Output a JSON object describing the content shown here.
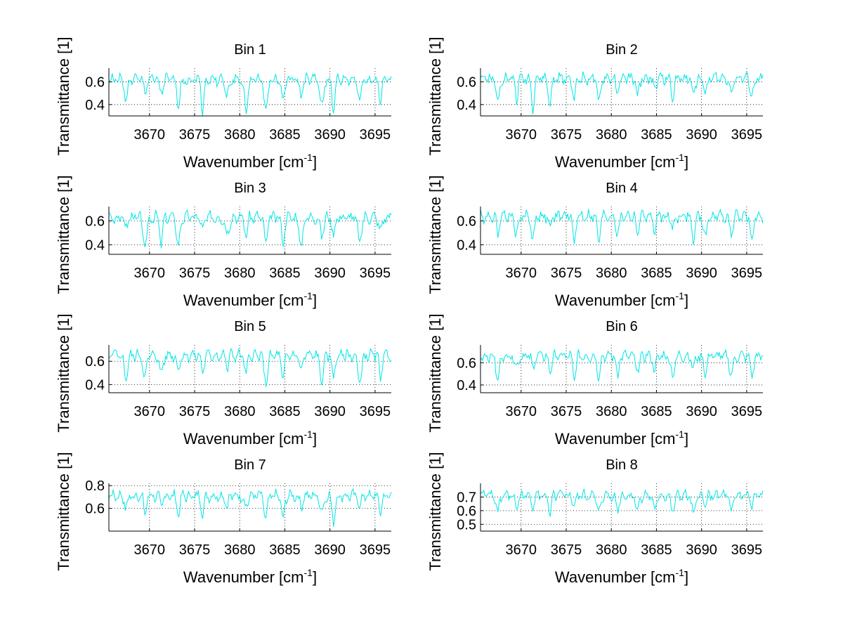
{
  "chart_data": [
    {
      "type": "line",
      "title": "Bin 1",
      "xlabel": "Wavenumber [cm",
      "xlabel_sup": "-1",
      "xlabel_end": "]",
      "ylabel": "Transmittance [1]",
      "xlim": [
        3665.5,
        3696.8
      ],
      "ylim": [
        0.3,
        0.72
      ],
      "xticks": [
        3670,
        3675,
        3680,
        3685,
        3690,
        3695
      ],
      "xtick_labels": [
        "3670",
        "3675",
        "3680",
        "3685",
        "3690",
        "3695"
      ],
      "yticks": [
        0.4,
        0.6
      ],
      "ytick_labels": [
        "0.4",
        "0.6"
      ],
      "grid": true,
      "line_color": "#00e5e5",
      "series": [
        {
          "name": "Bin 1",
          "baseline": 0.62,
          "amplitude": 0.05,
          "dip_scale": 0.3,
          "seed": 1
        }
      ]
    },
    {
      "type": "line",
      "title": "Bin 2",
      "xlabel": "Wavenumber [cm",
      "xlabel_sup": "-1",
      "xlabel_end": "]",
      "ylabel": "Transmittance [1]",
      "xlim": [
        3665.5,
        3696.8
      ],
      "ylim": [
        0.3,
        0.72
      ],
      "xticks": [
        3670,
        3675,
        3680,
        3685,
        3690,
        3695
      ],
      "xtick_labels": [
        "3670",
        "3675",
        "3680",
        "3685",
        "3690",
        "3695"
      ],
      "yticks": [
        0.4,
        0.6
      ],
      "ytick_labels": [
        "0.4",
        "0.6"
      ],
      "grid": true,
      "line_color": "#00e5e5",
      "series": [
        {
          "name": "Bin 2",
          "baseline": 0.63,
          "amplitude": 0.05,
          "dip_scale": 0.28,
          "seed": 2
        }
      ]
    },
    {
      "type": "line",
      "title": "Bin 3",
      "xlabel": "Wavenumber [cm",
      "xlabel_sup": "-1",
      "xlabel_end": "]",
      "ylabel": "Transmittance [1]",
      "xlim": [
        3665.5,
        3696.8
      ],
      "ylim": [
        0.32,
        0.72
      ],
      "xticks": [
        3670,
        3675,
        3680,
        3685,
        3690,
        3695
      ],
      "xtick_labels": [
        "3670",
        "3675",
        "3680",
        "3685",
        "3690",
        "3695"
      ],
      "yticks": [
        0.4,
        0.6
      ],
      "ytick_labels": [
        "0.4",
        "0.6"
      ],
      "grid": true,
      "line_color": "#00e5e5",
      "series": [
        {
          "name": "Bin 3",
          "baseline": 0.63,
          "amplitude": 0.05,
          "dip_scale": 0.27,
          "seed": 3
        }
      ]
    },
    {
      "type": "line",
      "title": "Bin 4",
      "xlabel": "Wavenumber [cm",
      "xlabel_sup": "-1",
      "xlabel_end": "]",
      "ylabel": "Transmittance [1]",
      "xlim": [
        3665.5,
        3696.8
      ],
      "ylim": [
        0.32,
        0.72
      ],
      "xticks": [
        3670,
        3675,
        3680,
        3685,
        3690,
        3695
      ],
      "xtick_labels": [
        "3670",
        "3675",
        "3680",
        "3685",
        "3690",
        "3695"
      ],
      "yticks": [
        0.4,
        0.6
      ],
      "ytick_labels": [
        "0.4",
        "0.6"
      ],
      "grid": true,
      "line_color": "#00e5e5",
      "series": [
        {
          "name": "Bin 4",
          "baseline": 0.64,
          "amplitude": 0.05,
          "dip_scale": 0.26,
          "seed": 4
        }
      ]
    },
    {
      "type": "line",
      "title": "Bin 5",
      "xlabel": "Wavenumber [cm",
      "xlabel_sup": "-1",
      "xlabel_end": "]",
      "ylabel": "Transmittance [1]",
      "xlim": [
        3665.5,
        3696.8
      ],
      "ylim": [
        0.33,
        0.74
      ],
      "xticks": [
        3670,
        3675,
        3680,
        3685,
        3690,
        3695
      ],
      "xtick_labels": [
        "3670",
        "3675",
        "3680",
        "3685",
        "3690",
        "3695"
      ],
      "yticks": [
        0.4,
        0.6
      ],
      "ytick_labels": [
        "0.4",
        "0.6"
      ],
      "grid": true,
      "line_color": "#00e5e5",
      "series": [
        {
          "name": "Bin 5",
          "baseline": 0.65,
          "amplitude": 0.05,
          "dip_scale": 0.24,
          "seed": 5
        }
      ]
    },
    {
      "type": "line",
      "title": "Bin 6",
      "xlabel": "Wavenumber [cm",
      "xlabel_sup": "-1",
      "xlabel_end": "]",
      "ylabel": "Transmittance [1]",
      "xlim": [
        3665.5,
        3696.8
      ],
      "ylim": [
        0.33,
        0.76
      ],
      "xticks": [
        3670,
        3675,
        3680,
        3685,
        3690,
        3695
      ],
      "xtick_labels": [
        "3670",
        "3675",
        "3680",
        "3685",
        "3690",
        "3695"
      ],
      "yticks": [
        0.4,
        0.6
      ],
      "ytick_labels": [
        "0.4",
        "0.6"
      ],
      "grid": true,
      "line_color": "#00e5e5",
      "series": [
        {
          "name": "Bin 6",
          "baseline": 0.66,
          "amplitude": 0.05,
          "dip_scale": 0.22,
          "seed": 6
        }
      ]
    },
    {
      "type": "line",
      "title": "Bin 7",
      "xlabel": "Wavenumber [cm",
      "xlabel_sup": "-1",
      "xlabel_end": "]",
      "ylabel": "Transmittance [1]",
      "xlim": [
        3665.5,
        3696.8
      ],
      "ylim": [
        0.4,
        0.82
      ],
      "xticks": [
        3670,
        3675,
        3680,
        3685,
        3690,
        3695
      ],
      "xtick_labels": [
        "3670",
        "3675",
        "3680",
        "3685",
        "3690",
        "3695"
      ],
      "yticks": [
        0.6,
        0.8
      ],
      "ytick_labels": [
        "0.6",
        "0.8"
      ],
      "grid": true,
      "line_color": "#00e5e5",
      "series": [
        {
          "name": "Bin 7",
          "baseline": 0.71,
          "amplitude": 0.05,
          "dip_scale": 0.22,
          "seed": 7
        }
      ]
    },
    {
      "type": "line",
      "title": "Bin 8",
      "xlabel": "Wavenumber [cm",
      "xlabel_sup": "-1",
      "xlabel_end": "]",
      "ylabel": "Transmittance [1]",
      "xlim": [
        3665.5,
        3696.8
      ],
      "ylim": [
        0.45,
        0.8
      ],
      "xticks": [
        3670,
        3675,
        3680,
        3685,
        3690,
        3695
      ],
      "xtick_labels": [
        "3670",
        "3675",
        "3680",
        "3685",
        "3690",
        "3695"
      ],
      "yticks": [
        0.5,
        0.6,
        0.7
      ],
      "ytick_labels": [
        "0.5",
        "0.6",
        "0.7"
      ],
      "grid": true,
      "line_color": "#00e5e5",
      "series": [
        {
          "name": "Bin 8",
          "baseline": 0.71,
          "amplitude": 0.04,
          "dip_scale": 0.18,
          "seed": 8
        }
      ]
    }
  ]
}
